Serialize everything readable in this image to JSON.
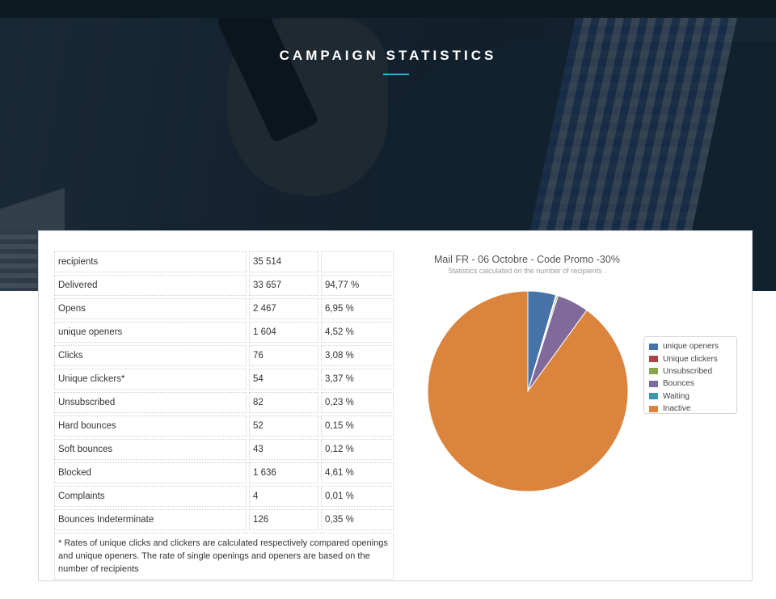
{
  "header": {
    "title": "CAMPAIGN STATISTICS"
  },
  "stats_table": {
    "rows": [
      {
        "label": "recipients",
        "count": "35 514",
        "rate": ""
      },
      {
        "label": "Delivered",
        "count": "33 657",
        "rate": "94,77 %"
      },
      {
        "label": "Opens",
        "count": "2 467",
        "rate": "6,95 %"
      },
      {
        "label": "unique openers",
        "count": "1 604",
        "rate": "4,52 %"
      },
      {
        "label": "Clicks",
        "count": "76",
        "rate": "3,08 %"
      },
      {
        "label": "Unique clickers*",
        "count": "54",
        "rate": "3,37 %"
      },
      {
        "label": "Unsubscribed",
        "count": "82",
        "rate": "0,23 %"
      },
      {
        "label": "Hard bounces",
        "count": "52",
        "rate": "0,15 %"
      },
      {
        "label": "Soft bounces",
        "count": "43",
        "rate": "0,12 %"
      },
      {
        "label": "Blocked",
        "count": "1 636",
        "rate": "4,61 %"
      },
      {
        "label": "Complaints",
        "count": "4",
        "rate": "0,01 %"
      },
      {
        "label": "Bounces Indeterminate",
        "count": "126",
        "rate": "0,35 %"
      }
    ],
    "footnote": "* Rates of unique clicks and clickers are calculated respectively compared openings and unique openers. The rate of single openings and openers are based on the number of recipients"
  },
  "chart_data": {
    "type": "pie",
    "title": "Mail FR - 06 Octobre - Code Promo -30%",
    "subtitle": "Statistics calculated on the number of recipients .",
    "legend_position": "right",
    "series": [
      {
        "name": "unique openers",
        "value": 4.52,
        "color": "#4572a7"
      },
      {
        "name": "Unique clickers",
        "value": 0.15,
        "color": "#aa4643"
      },
      {
        "name": "Unsubscribed",
        "value": 0.23,
        "color": "#89a54e"
      },
      {
        "name": "Bounces",
        "value": 5.11,
        "color": "#80699b"
      },
      {
        "name": "Waiting",
        "value": 0.0,
        "color": "#3d96ae"
      },
      {
        "name": "Inactive",
        "value": 89.99,
        "color": "#db843d"
      }
    ]
  }
}
